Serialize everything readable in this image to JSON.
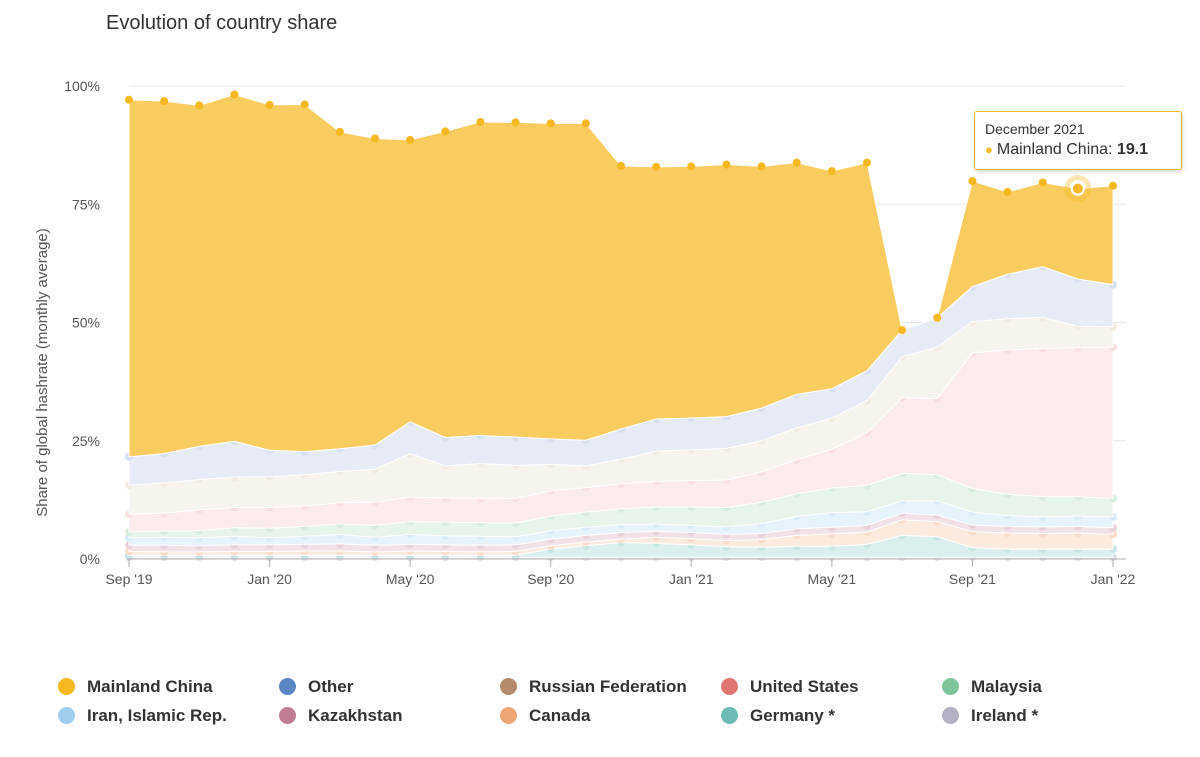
{
  "chart_data": {
    "type": "area",
    "stacked": true,
    "title": "Evolution of country share",
    "ylabel": "Share of global hashrate (monthly average)",
    "xlabel": "",
    "ylim": [
      0,
      100
    ],
    "y_ticks": [
      "0%",
      "25%",
      "50%",
      "75%",
      "100%"
    ],
    "x": [
      "2019-09",
      "2019-10",
      "2019-11",
      "2019-12",
      "2020-01",
      "2020-02",
      "2020-03",
      "2020-04",
      "2020-05",
      "2020-06",
      "2020-07",
      "2020-08",
      "2020-09",
      "2020-10",
      "2020-11",
      "2020-12",
      "2021-01",
      "2021-02",
      "2021-03",
      "2021-04",
      "2021-05",
      "2021-06",
      "2021-07",
      "2021-08",
      "2021-09",
      "2021-10",
      "2021-11",
      "2021-12",
      "2022-01"
    ],
    "x_tick_labels": [
      {
        "at": "2019-09",
        "label": "Sep '19"
      },
      {
        "at": "2020-01",
        "label": "Jan '20"
      },
      {
        "at": "2020-05",
        "label": "May '20"
      },
      {
        "at": "2020-09",
        "label": "Sep '20"
      },
      {
        "at": "2021-01",
        "label": "Jan '21"
      },
      {
        "at": "2021-05",
        "label": "May '21"
      },
      {
        "at": "2021-09",
        "label": "Sep '21"
      },
      {
        "at": "2022-01",
        "label": "Jan '22"
      }
    ],
    "legend_position": "bottom",
    "grid": true,
    "series": [
      {
        "name": "Ireland *",
        "color": "#b7b5ca",
        "values": [
          0.4,
          0.4,
          0.4,
          0.4,
          0.4,
          0.4,
          0.4,
          0.4,
          0.4,
          0.4,
          0.4,
          0.4,
          0.4,
          0.4,
          0.4,
          0.4,
          0.4,
          0.4,
          0.4,
          0.4,
          0.4,
          0.4,
          0.4,
          0.4,
          0.4,
          0.4,
          0.4,
          0.4,
          0.4
        ]
      },
      {
        "name": "Germany *",
        "color": "#80c7c1",
        "values": [
          0.4,
          0.4,
          0.4,
          0.4,
          0.4,
          0.4,
          0.4,
          0.4,
          0.4,
          0.4,
          0.4,
          0.4,
          1.7,
          2.4,
          3.1,
          2.9,
          2.6,
          2.2,
          2.1,
          2.3,
          2.3,
          2.7,
          4.6,
          4.3,
          2.0,
          1.7,
          1.7,
          1.7,
          1.7
        ]
      },
      {
        "name": "Canada",
        "color": "#f2b489",
        "values": [
          0.8,
          0.7,
          0.7,
          0.8,
          0.8,
          0.9,
          0.9,
          0.7,
          0.9,
          0.8,
          0.7,
          0.8,
          0.7,
          0.8,
          0.7,
          1.3,
          1.3,
          1.3,
          1.6,
          2.3,
          2.6,
          2.6,
          3.3,
          3.2,
          3.4,
          3.4,
          3.3,
          3.4,
          3.1
        ]
      },
      {
        "name": "Kazakhstan",
        "color": "#cf98ad",
        "values": [
          1.3,
          1.4,
          1.3,
          1.4,
          1.4,
          1.4,
          1.5,
          1.4,
          1.4,
          1.4,
          1.4,
          1.4,
          1.4,
          1.4,
          1.4,
          1.3,
          1.3,
          1.3,
          1.3,
          1.4,
          1.4,
          1.4,
          1.4,
          1.4,
          1.4,
          1.4,
          1.4,
          1.4,
          1.4
        ]
      },
      {
        "name": "Iran, Islamic Rep.",
        "color": "#a5d3ef",
        "values": [
          1.6,
          1.7,
          1.7,
          1.8,
          1.5,
          1.7,
          2.0,
          1.7,
          2.1,
          1.9,
          1.9,
          1.7,
          1.8,
          1.7,
          1.7,
          1.5,
          1.5,
          1.6,
          2.1,
          2.6,
          3.1,
          2.9,
          2.6,
          3.0,
          2.7,
          2.3,
          2.1,
          2.2,
          2.3
        ]
      },
      {
        "name": "Malaysia",
        "color": "#a6d8b0",
        "values": [
          1.2,
          1.3,
          1.5,
          1.8,
          2.0,
          2.1,
          2.2,
          2.5,
          2.7,
          2.9,
          2.9,
          2.9,
          3.1,
          3.2,
          3.3,
          3.6,
          3.9,
          4.1,
          4.5,
          4.8,
          5.2,
          5.6,
          5.8,
          5.5,
          5.0,
          4.5,
          4.3,
          4.1,
          3.9
        ]
      },
      {
        "name": "United States",
        "color": "#f2b8b8",
        "values": [
          3.8,
          3.8,
          4.4,
          4.3,
          4.4,
          4.3,
          4.5,
          4.9,
          5.2,
          5.1,
          5.0,
          5.2,
          5.3,
          5.2,
          5.3,
          5.4,
          5.6,
          5.8,
          6.4,
          7.2,
          8.2,
          11.1,
          16.0,
          16.1,
          28.7,
          30.5,
          31.3,
          31.5,
          32.0
        ]
      },
      {
        "name": "Russian Federation",
        "color": "#e3d3bd",
        "values": [
          6.1,
          6.4,
          6.4,
          6.4,
          6.5,
          6.6,
          6.6,
          7.0,
          9.2,
          6.8,
          7.5,
          7.0,
          5.6,
          4.6,
          5.2,
          6.4,
          6.5,
          6.7,
          6.6,
          6.7,
          6.6,
          6.8,
          8.7,
          10.9,
          6.6,
          6.6,
          6.6,
          4.5,
          4.3
        ]
      },
      {
        "name": "Other",
        "color": "#a8b7dd",
        "values": [
          6.0,
          6.2,
          7.0,
          7.6,
          5.6,
          4.9,
          4.8,
          5.1,
          6.7,
          6.0,
          5.9,
          6.0,
          5.4,
          5.4,
          6.4,
          6.8,
          6.7,
          6.7,
          6.9,
          7.1,
          6.2,
          6.3,
          5.6,
          6.2,
          7.4,
          9.4,
          10.7,
          10.0,
          8.9
        ]
      },
      {
        "name": "Mainland China",
        "color": "#f5b820",
        "values": [
          75.5,
          74.5,
          72.1,
          73.3,
          73.0,
          73.4,
          67.0,
          64.8,
          59.6,
          64.7,
          66.3,
          66.5,
          66.7,
          67.0,
          55.6,
          53.3,
          53.2,
          53.3,
          51.1,
          49.0,
          46.0,
          44.0,
          0.0,
          0.0,
          22.3,
          17.4,
          17.8,
          19.1,
          20.9
        ]
      }
    ],
    "tooltip": {
      "title": "December 2021",
      "series": "Mainland China",
      "value": "19.1"
    }
  }
}
